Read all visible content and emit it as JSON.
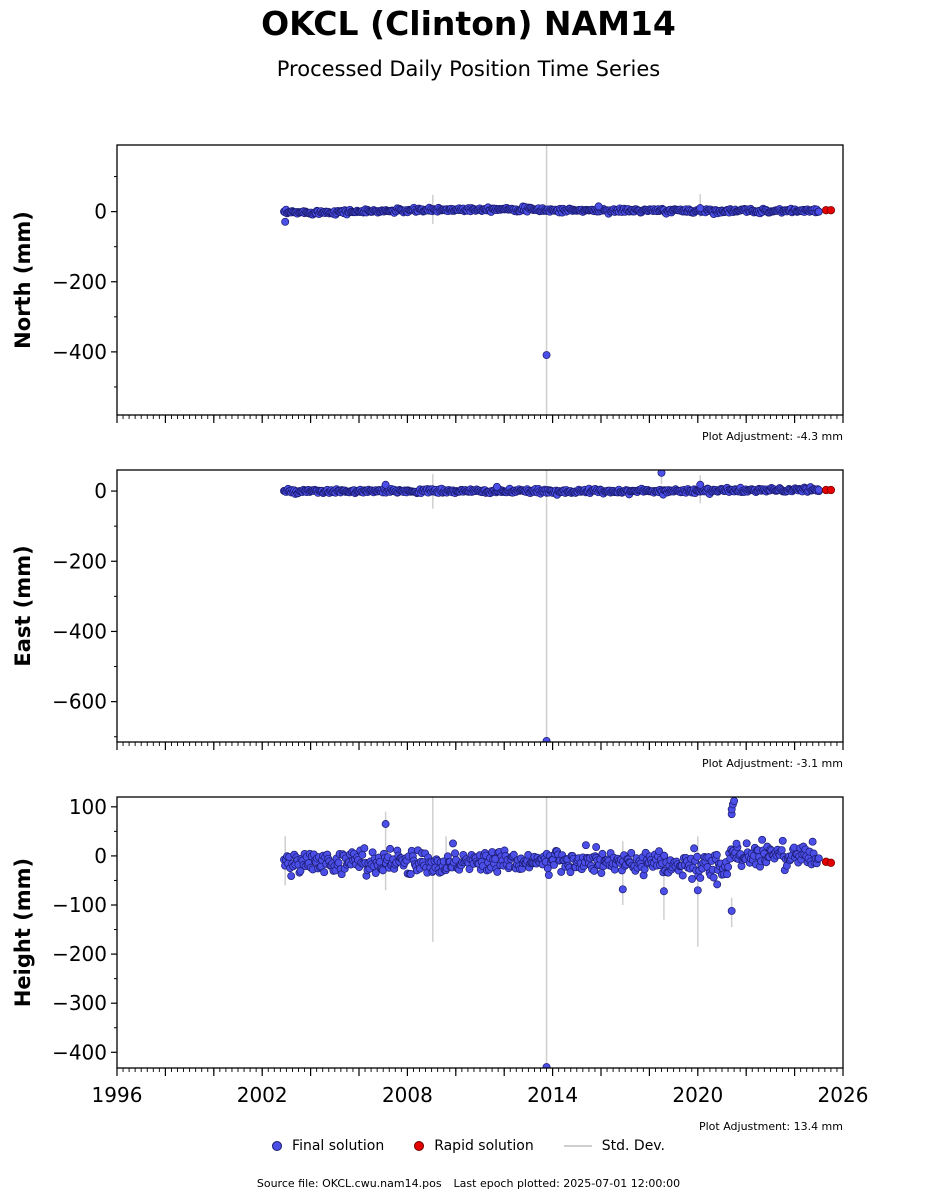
{
  "title": "OKCL (Clinton) NAM14",
  "subtitle": "Processed Daily Position Time Series",
  "legend": {
    "final": "Final solution",
    "rapid": "Rapid solution",
    "std": "Std. Dev."
  },
  "footer": {
    "source": "Source file: OKCL.cwu.nam14.pos",
    "last_epoch": "Last epoch plotted: 2025-07-01 12:00:00"
  },
  "colors": {
    "final_fill": "#4b4fe8",
    "final_edge": "#1a1a6e",
    "rapid_fill": "#e30000",
    "std": "#cfcfcf"
  },
  "chart_data": [
    {
      "type": "scatter",
      "ylabel": "North (mm)",
      "xlim": [
        1996,
        2026
      ],
      "ylim": [
        -580,
        190
      ],
      "yticks": [
        0,
        -200,
        -400
      ],
      "ytick_labels": [
        "0",
        "−200",
        "−400"
      ],
      "adjustment": "Plot Adjustment: -4.3 mm",
      "final_range": [
        2002.9,
        2025.0
      ],
      "rapid_range": [
        2025.2,
        2025.5
      ],
      "baseline": [
        [
          2002.9,
          -3
        ],
        [
          2006,
          0
        ],
        [
          2010,
          6
        ],
        [
          2012,
          8
        ],
        [
          2014,
          4
        ],
        [
          2018,
          3
        ],
        [
          2022,
          2
        ],
        [
          2025.5,
          3
        ]
      ],
      "noise": 3,
      "outliers": [
        [
          2002.95,
          -29
        ],
        [
          2013.75,
          -409
        ],
        [
          2015.9,
          15
        ],
        [
          2020.1,
          10
        ],
        [
          2025.0,
          0
        ]
      ],
      "rapid_points": [
        [
          2025.3,
          4
        ],
        [
          2025.5,
          4
        ]
      ],
      "std_bars": [
        [
          2009.05,
          -35,
          48
        ],
        [
          2013.75,
          -580,
          190
        ],
        [
          2020.1,
          -15,
          50
        ]
      ]
    },
    {
      "type": "scatter",
      "ylabel": "East (mm)",
      "xlim": [
        1996,
        2026
      ],
      "ylim": [
        -715,
        60
      ],
      "yticks": [
        0,
        -200,
        -400,
        -600
      ],
      "ytick_labels": [
        "0",
        "−200",
        "−400",
        "−600"
      ],
      "adjustment": "Plot Adjustment: -3.1 mm",
      "final_range": [
        2002.9,
        2025.0
      ],
      "rapid_range": [
        2025.2,
        2025.5
      ],
      "baseline": [
        [
          2002.9,
          -2
        ],
        [
          2008,
          0
        ],
        [
          2013,
          -1
        ],
        [
          2018,
          0
        ],
        [
          2022,
          2
        ],
        [
          2025.5,
          4
        ]
      ],
      "noise": 3,
      "outliers": [
        [
          2007.1,
          18
        ],
        [
          2011.7,
          12
        ],
        [
          2013.75,
          -712
        ],
        [
          2018.5,
          52
        ],
        [
          2020.1,
          18
        ],
        [
          2025.0,
          3
        ]
      ],
      "rapid_points": [
        [
          2025.3,
          3
        ],
        [
          2025.5,
          3
        ]
      ],
      "std_bars": [
        [
          2009.05,
          -50,
          48
        ],
        [
          2013.75,
          -715,
          60
        ],
        [
          2018.5,
          20,
          55
        ],
        [
          2020.1,
          -35,
          45
        ]
      ]
    },
    {
      "type": "scatter",
      "ylabel": "Height (mm)",
      "xlim": [
        1996,
        2026
      ],
      "ylim": [
        -432,
        120
      ],
      "yticks": [
        100,
        0,
        -100,
        -200,
        -300,
        -400
      ],
      "ytick_labels": [
        "100",
        "0",
        "−100",
        "−200",
        "−300",
        "−400"
      ],
      "adjustment": "Plot Adjustment: 13.4 mm",
      "final_range": [
        2002.9,
        2025.0
      ],
      "rapid_range": [
        2025.2,
        2025.5
      ],
      "baseline": [
        [
          2002.9,
          -15
        ],
        [
          2005,
          -12
        ],
        [
          2007,
          -10
        ],
        [
          2009,
          -15
        ],
        [
          2012,
          -8
        ],
        [
          2014,
          -12
        ],
        [
          2017,
          -15
        ],
        [
          2019,
          -20
        ],
        [
          2020.5,
          -20
        ],
        [
          2021.2,
          -25
        ],
        [
          2021.4,
          0
        ],
        [
          2023,
          5
        ],
        [
          2025.0,
          -2
        ]
      ],
      "noise": 12,
      "outliers": [
        [
          2007.1,
          65
        ],
        [
          2013.75,
          -430
        ],
        [
          2016.9,
          -68
        ],
        [
          2018.6,
          -72
        ],
        [
          2020.0,
          -70
        ],
        [
          2020.8,
          -58
        ],
        [
          2021.4,
          -112
        ],
        [
          2021.4,
          85
        ],
        [
          2021.4,
          95
        ],
        [
          2021.45,
          105
        ],
        [
          2021.5,
          112
        ],
        [
          2021.6,
          25
        ],
        [
          2015.8,
          18
        ]
      ],
      "rapid_points": [
        [
          2025.3,
          -12
        ],
        [
          2025.5,
          -14
        ]
      ],
      "std_bars": [
        [
          2002.95,
          -60,
          40
        ],
        [
          2007.1,
          -70,
          90
        ],
        [
          2009.05,
          -175,
          120
        ],
        [
          2009.6,
          -30,
          40
        ],
        [
          2013.75,
          -432,
          120
        ],
        [
          2016.9,
          -100,
          30
        ],
        [
          2018.6,
          -130,
          10
        ],
        [
          2020.0,
          -185,
          40
        ],
        [
          2021.4,
          -145,
          -85
        ]
      ]
    }
  ]
}
